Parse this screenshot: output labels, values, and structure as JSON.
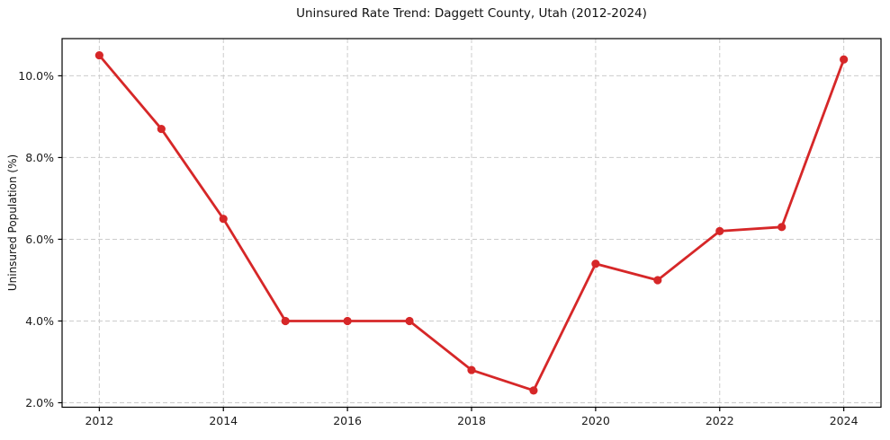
{
  "chart_data": {
    "type": "line",
    "title": "Uninsured Rate Trend: Daggett County, Utah (2012-2024)",
    "xlabel": "",
    "ylabel": "Uninsured Population (%)",
    "x": [
      2012,
      2013,
      2014,
      2015,
      2016,
      2017,
      2018,
      2019,
      2020,
      2021,
      2022,
      2023,
      2024
    ],
    "series": [
      {
        "name": "Uninsured Population (%)",
        "values": [
          10.5,
          8.7,
          6.5,
          4.0,
          4.0,
          4.0,
          2.8,
          2.3,
          5.4,
          5.0,
          6.2,
          6.3,
          10.4
        ]
      }
    ],
    "xlim": [
      2011.4,
      2024.6
    ],
    "ylim": [
      1.89,
      10.91
    ],
    "xticks": [
      2012,
      2014,
      2016,
      2018,
      2020,
      2022,
      2024
    ],
    "xtick_labels": [
      "2012",
      "2014",
      "2016",
      "2018",
      "2020",
      "2022",
      "2024"
    ],
    "yticks": [
      2,
      4,
      6,
      8,
      10
    ],
    "ytick_labels": [
      "2.0%",
      "4.0%",
      "6.0%",
      "8.0%",
      "10.0%"
    ],
    "grid": true,
    "legend_position": "none",
    "colors": {
      "line": "#d62728",
      "marker": "#d62728",
      "grid": "#cccccc",
      "axis": "#000000",
      "tick_label": "#1a1a1a",
      "background": "#ffffff"
    }
  }
}
